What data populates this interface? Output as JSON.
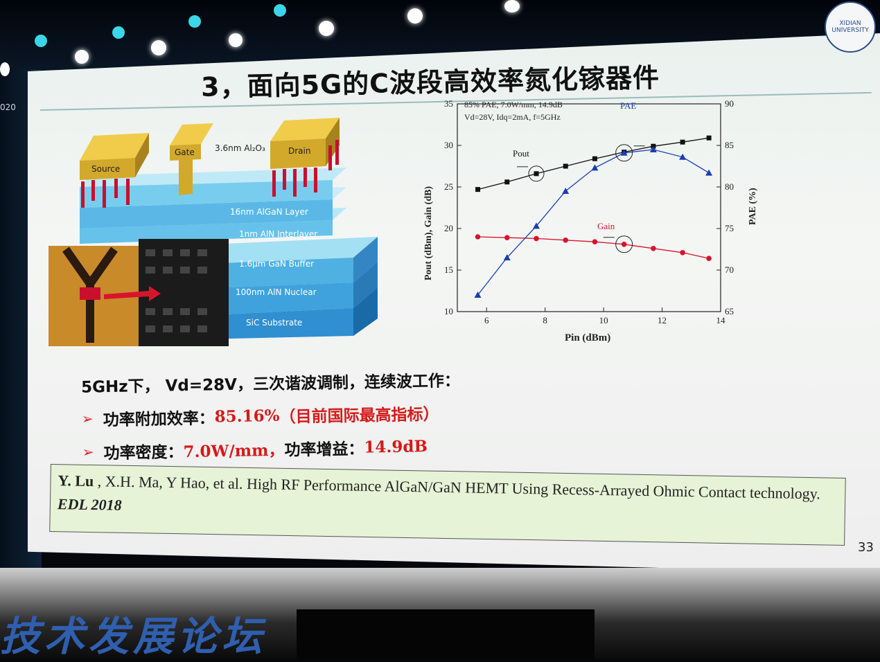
{
  "slide": {
    "title": "3，面向5G的C波段高效率氮化镓器件",
    "page_number": "33",
    "logo_text": "XIDIAN UNIVERSITY",
    "left_edge_text": "020"
  },
  "device_diagram": {
    "labels": {
      "source": "Source",
      "gate": "Gate",
      "drain": "Drain",
      "oxide": "3.6nm Al₂O₃",
      "algan": "16nm AlGaN Layer",
      "aln_inter": "1nm AlN Interlayer",
      "gan_buffer": "1.6μm GaN Buffer",
      "aln_nuclear": "100nm AlN Nuclear",
      "sic": "SiC Substrate"
    },
    "colors": {
      "metal": "#d8b23a",
      "layer_light": "#6fc4e8",
      "layer_dark": "#3d9fd6",
      "spike": "#c8102e"
    }
  },
  "chart_data": {
    "type": "line",
    "annotation_lines": [
      "85% PAE, 7.0W/mm, 14.9dB",
      "Vd=28V, Idq=2mA, f=5GHz"
    ],
    "xlabel": "Pin (dBm)",
    "ylabel_left": "Pout (dBm), Gain (dB)",
    "ylabel_right": "PAE (%)",
    "xlim": [
      5,
      14
    ],
    "ylim_left": [
      10,
      35
    ],
    "ylim_right": [
      65,
      90
    ],
    "x_ticks": [
      6,
      8,
      10,
      12,
      14
    ],
    "y_ticks_left": [
      10,
      15,
      20,
      25,
      30,
      35
    ],
    "y_ticks_right": [
      65,
      70,
      75,
      80,
      85,
      90
    ],
    "x": [
      5.7,
      6.7,
      7.7,
      8.7,
      9.7,
      10.7,
      11.7,
      12.7,
      13.6
    ],
    "series": [
      {
        "name": "Pout",
        "axis": "left",
        "marker": "square",
        "color": "#111111",
        "values": [
          24.7,
          25.6,
          26.6,
          27.5,
          28.4,
          29.2,
          29.9,
          30.4,
          30.9
        ]
      },
      {
        "name": "Gain",
        "axis": "left",
        "marker": "circle",
        "color": "#d8142c",
        "values": [
          19.0,
          18.9,
          18.8,
          18.6,
          18.4,
          18.1,
          17.6,
          17.1,
          16.4
        ]
      },
      {
        "name": "PAE",
        "axis": "right",
        "marker": "triangle",
        "color": "#1a3fb0",
        "values": [
          67.0,
          71.5,
          75.3,
          79.5,
          82.3,
          84.1,
          84.5,
          83.6,
          81.7
        ]
      }
    ]
  },
  "bullets": {
    "line1": "5GHz下， Vd=28V，三次谐波调制，连续波工作：",
    "b1_label": "功率附加效率：",
    "b1_value": "85.16%",
    "b1_note": "（目前国际最高指标）",
    "b2_label": "功率密度：",
    "b2_value": "7.0W/mm，",
    "b2_label2": " 功率增益：",
    "b2_value2": "14.9dB"
  },
  "reference": {
    "author_bold": "Y. Lu",
    "text": " , X.H. Ma, Y Hao, et al. High RF Performance AlGaN/GaN HEMT Using Recess-Arrayed Ohmic Contact technology. ",
    "journal": "EDL 2018"
  },
  "banner": {
    "text": "技术发展论坛"
  }
}
